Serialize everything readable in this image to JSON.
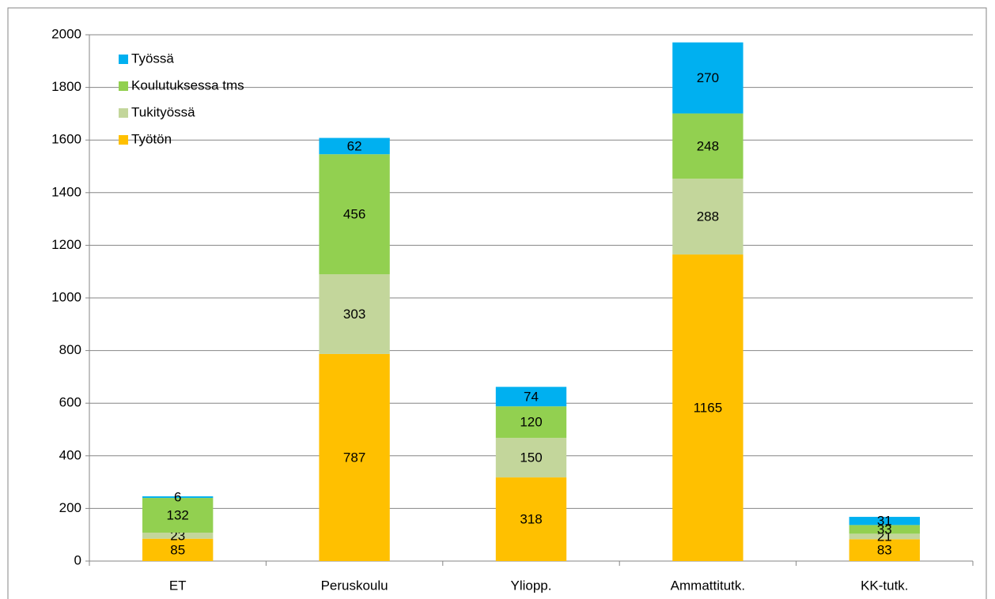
{
  "chart_data": {
    "type": "stacked_bar",
    "categories": [
      "ET",
      "Peruskoulu",
      "Yliopp.",
      "Ammattitutk.",
      "KK-tutk."
    ],
    "series": [
      {
        "name": "Työtön",
        "color": "#FFC000",
        "values": [
          85,
          787,
          318,
          1165,
          83
        ]
      },
      {
        "name": "Tukityössä",
        "color": "#C3D69B",
        "values": [
          23,
          303,
          150,
          288,
          21
        ]
      },
      {
        "name": "Koulutuksessa tms",
        "color": "#92D050",
        "values": [
          132,
          456,
          120,
          248,
          33
        ]
      },
      {
        "name": "Työssä",
        "color": "#00B0F0",
        "values": [
          6,
          62,
          74,
          270,
          31
        ]
      }
    ],
    "ylim": [
      0,
      2000
    ],
    "yticks": [
      0,
      200,
      400,
      600,
      800,
      1000,
      1200,
      1400,
      1600,
      1800,
      2000
    ],
    "grid": true,
    "legend": "top-left"
  }
}
